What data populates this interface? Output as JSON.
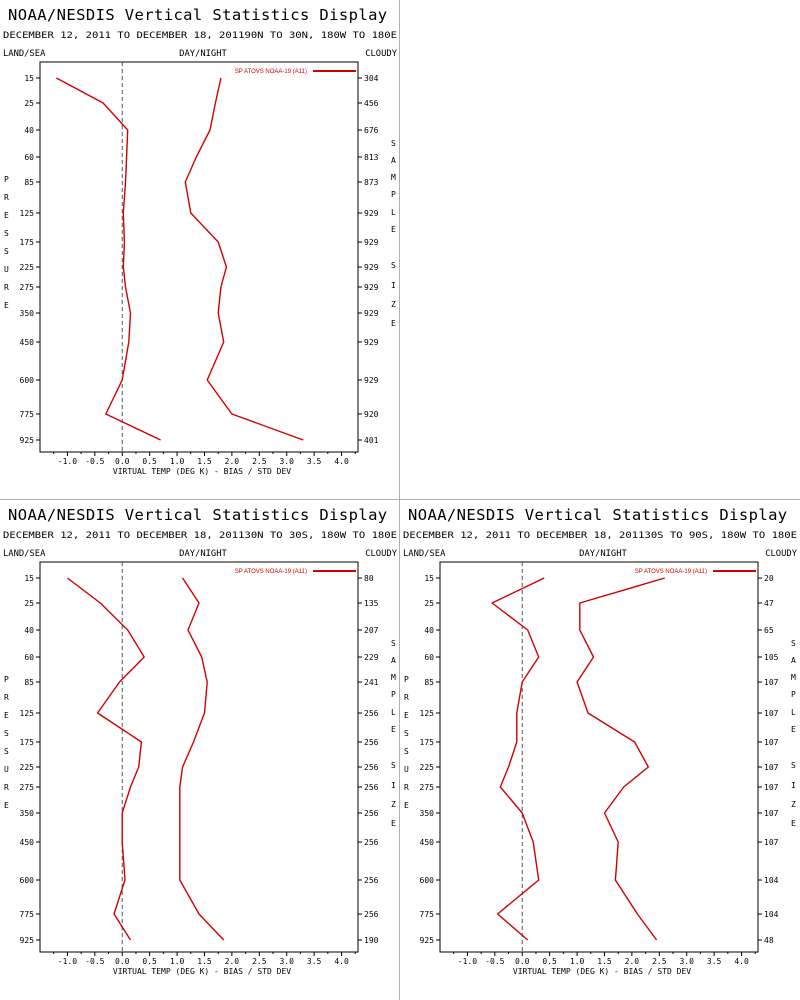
{
  "page": {
    "title": "NOAA/NESDIS Vertical Statistics Display",
    "left_label": "LAND/SEA",
    "center_label": "DAY/NIGHT",
    "right_label": "CLOUDY",
    "y_axis_letters": [
      "P",
      "R",
      "E",
      "S",
      "S",
      "U",
      "R",
      "E"
    ],
    "sample_letters": [
      "S",
      "A",
      "M",
      "P",
      "L",
      "E",
      "",
      "S",
      "I",
      "Z",
      "E"
    ],
    "xlabel": "VIRTUAL TEMP (DEG K) - BIAS / STD DEV",
    "legend_label": "SP ATOVS NOAA-19 (A11)",
    "colors": {
      "series": "#d00000",
      "divider": "#b0b0b0",
      "zero_line": "#555555"
    }
  },
  "chart_data": [
    {
      "type": "line",
      "date_range": "DECEMBER 12, 2011 TO DECEMBER 18, 2011",
      "region": "90N TO 30N, 180W TO 180E",
      "pressure_levels": [
        15,
        25,
        40,
        60,
        85,
        125,
        175,
        225,
        275,
        350,
        450,
        600,
        775,
        925
      ],
      "sample_size": [
        "304",
        "456",
        "676",
        "813",
        "873",
        "929",
        "929",
        "929",
        "929",
        "929",
        "929",
        "929",
        "920",
        "401"
      ],
      "series": [
        {
          "values": [
            -1.2,
            -0.35,
            0.1,
            0.08,
            0.06,
            0.02,
            0.04,
            0.02,
            0.06,
            0.15,
            0.12,
            0.0,
            -0.3,
            0.7
          ]
        },
        {
          "values": [
            1.8,
            1.7,
            1.6,
            1.35,
            1.15,
            1.25,
            1.75,
            1.9,
            1.8,
            1.75,
            1.85,
            1.55,
            2.0,
            3.3
          ]
        }
      ],
      "xlim": [
        -1.5,
        4.3
      ],
      "xticks": [
        "-1.0",
        "-0.5",
        "0.0",
        "0.5",
        "1.0",
        "1.5",
        "2.0",
        "2.5",
        "3.0",
        "3.5",
        "4.0"
      ],
      "position": "top-left"
    },
    {
      "type": "line",
      "date_range": "DECEMBER 12, 2011 TO DECEMBER 18, 2011",
      "region": "30N TO 30S, 180W TO 180E",
      "pressure_levels": [
        15,
        25,
        40,
        60,
        85,
        125,
        175,
        225,
        275,
        350,
        450,
        600,
        775,
        925
      ],
      "sample_size": [
        "80",
        "135",
        "207",
        "229",
        "241",
        "256",
        "256",
        "256",
        "256",
        "256",
        "256",
        "256",
        "256",
        "190"
      ],
      "series": [
        {
          "values": [
            -1.0,
            -0.4,
            0.1,
            0.4,
            -0.05,
            -0.45,
            0.35,
            0.3,
            0.15,
            0.0,
            0.0,
            0.05,
            -0.15,
            0.15
          ]
        },
        {
          "values": [
            1.1,
            1.4,
            1.2,
            1.45,
            1.55,
            1.5,
            1.3,
            1.1,
            1.05,
            1.05,
            1.05,
            1.05,
            1.4,
            1.85
          ]
        }
      ],
      "xlim": [
        -1.5,
        4.3
      ],
      "xticks": [
        "-1.0",
        "-0.5",
        "0.0",
        "0.5",
        "1.0",
        "1.5",
        "2.0",
        "2.5",
        "3.0",
        "3.5",
        "4.0"
      ],
      "position": "bottom-left"
    },
    {
      "type": "line",
      "date_range": "DECEMBER 12, 2011 TO DECEMBER 18, 2011",
      "region": "30S TO 90S, 180W TO 180E",
      "pressure_levels": [
        15,
        25,
        40,
        60,
        85,
        125,
        175,
        225,
        275,
        350,
        450,
        600,
        775,
        925
      ],
      "sample_size": [
        "20",
        "47",
        "65",
        "105",
        "107",
        "107",
        "107",
        "107",
        "107",
        "107",
        "107",
        "104",
        "104",
        "48"
      ],
      "series": [
        {
          "values": [
            0.4,
            -0.55,
            0.1,
            0.3,
            0.0,
            -0.1,
            -0.1,
            -0.25,
            -0.4,
            0.0,
            0.2,
            0.3,
            -0.45,
            0.1
          ]
        },
        {
          "values": [
            2.6,
            1.05,
            1.05,
            1.3,
            1.0,
            1.2,
            2.05,
            2.3,
            1.85,
            1.5,
            1.75,
            1.7,
            2.1,
            2.45
          ]
        }
      ],
      "xlim": [
        -1.5,
        4.3
      ],
      "xticks": [
        "-1.0",
        "-0.5",
        "0.0",
        "0.5",
        "1.0",
        "1.5",
        "2.0",
        "2.5",
        "3.0",
        "3.5",
        "4.0"
      ],
      "position": "bottom-right"
    }
  ]
}
